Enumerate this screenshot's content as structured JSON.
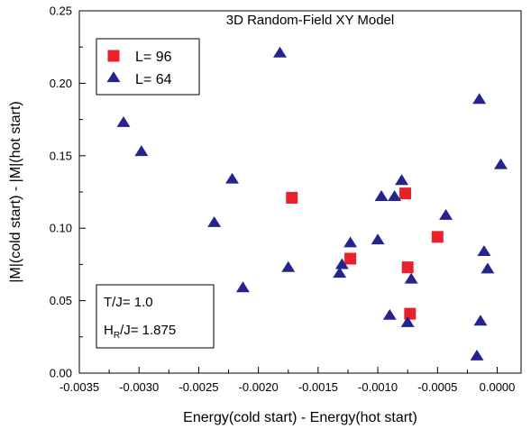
{
  "chart_data": {
    "type": "scatter",
    "title": "3D Random-Field XY Model",
    "xlabel": "Energy(cold start) - Energy(hot start)",
    "ylabel": "|M|(cold start) - |M|(hot start)",
    "xlim": [
      -0.0035,
      0.0002
    ],
    "ylim": [
      0.0,
      0.25
    ],
    "xticks": [
      "-0.0035",
      "-0.0030",
      "-0.0025",
      "-0.0020",
      "-0.0015",
      "-0.0010",
      "-0.0005",
      "0.0000"
    ],
    "yticks": [
      "0.00",
      "0.05",
      "0.10",
      "0.15",
      "0.20",
      "0.25"
    ],
    "legend_position": "top-left",
    "series": [
      {
        "name": "L= 96",
        "marker": "square",
        "color": "#e8212b",
        "points": [
          {
            "x": -0.00172,
            "y": 0.121
          },
          {
            "x": -0.00123,
            "y": 0.079
          },
          {
            "x": -0.00077,
            "y": 0.124
          },
          {
            "x": -0.00075,
            "y": 0.073
          },
          {
            "x": -0.00073,
            "y": 0.041
          },
          {
            "x": -0.0005,
            "y": 0.094
          }
        ]
      },
      {
        "name": "L= 64",
        "marker": "triangle",
        "color": "#26238f",
        "points": [
          {
            "x": -0.00313,
            "y": 0.173
          },
          {
            "x": -0.00298,
            "y": 0.153
          },
          {
            "x": -0.00237,
            "y": 0.104
          },
          {
            "x": -0.00222,
            "y": 0.134
          },
          {
            "x": -0.00213,
            "y": 0.059
          },
          {
            "x": -0.00182,
            "y": 0.221
          },
          {
            "x": -0.00175,
            "y": 0.073
          },
          {
            "x": -0.00132,
            "y": 0.069
          },
          {
            "x": -0.0013,
            "y": 0.075
          },
          {
            "x": -0.00123,
            "y": 0.09
          },
          {
            "x": -0.001,
            "y": 0.092
          },
          {
            "x": -0.00097,
            "y": 0.122
          },
          {
            "x": -0.0009,
            "y": 0.04
          },
          {
            "x": -0.00086,
            "y": 0.122
          },
          {
            "x": -0.0008,
            "y": 0.133
          },
          {
            "x": -0.00075,
            "y": 0.035
          },
          {
            "x": -0.00072,
            "y": 0.065
          },
          {
            "x": -0.00043,
            "y": 0.109
          },
          {
            "x": -0.00017,
            "y": 0.012
          },
          {
            "x": -0.00015,
            "y": 0.189
          },
          {
            "x": -0.00014,
            "y": 0.036
          },
          {
            "x": -0.00011,
            "y": 0.084
          },
          {
            "x": -8e-05,
            "y": 0.072
          },
          {
            "x": 3e-05,
            "y": 0.144
          }
        ]
      }
    ],
    "annotation": {
      "line1": "T/J= 1.0",
      "line2_prefix": "H",
      "line2_sub": "R",
      "line2_suffix": "/J= 1.875"
    }
  }
}
